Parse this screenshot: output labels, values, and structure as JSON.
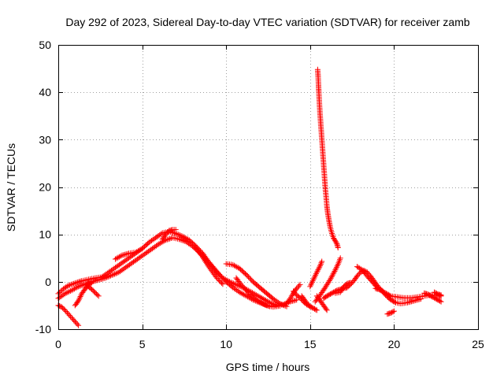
{
  "chart_data": {
    "type": "scatter",
    "title": "Day 292 of 2023, Sidereal Day-to-day VTEC variation (SDTVAR) for receiver zamb",
    "xlabel": "GPS time / hours",
    "ylabel": "SDTVAR / TECUs",
    "xlim": [
      0,
      25
    ],
    "ylim": [
      -10,
      50
    ],
    "xticks": [
      0,
      5,
      10,
      15,
      20,
      25
    ],
    "yticks": [
      -10,
      0,
      10,
      20,
      30,
      40,
      50
    ],
    "grid": true,
    "marker": "+",
    "series": [
      {
        "name": "SDTVAR",
        "color": "#ff0000",
        "tracks": [
          [
            [
              0.0,
              -2.5
            ],
            [
              0.3,
              -1.5
            ],
            [
              0.6,
              -0.8
            ],
            [
              1.0,
              -0.3
            ],
            [
              1.4,
              0.2
            ],
            [
              1.8,
              0.5
            ],
            [
              2.2,
              0.8
            ],
            [
              2.6,
              1.0
            ],
            [
              3.0,
              2.0
            ],
            [
              3.4,
              3.0
            ],
            [
              3.8,
              4.0
            ],
            [
              4.2,
              5.0
            ],
            [
              4.6,
              6.0
            ],
            [
              5.0,
              7.0
            ],
            [
              5.4,
              8.3
            ],
            [
              5.8,
              9.3
            ],
            [
              6.2,
              10.3
            ],
            [
              6.6,
              10.6
            ],
            [
              7.0,
              10.2
            ],
            [
              7.4,
              9.6
            ],
            [
              7.8,
              8.8
            ],
            [
              8.2,
              7.5
            ],
            [
              8.6,
              6.0
            ],
            [
              9.0,
              4.0
            ],
            [
              9.4,
              2.2
            ],
            [
              9.8,
              0.8
            ],
            [
              10.2,
              0.0
            ],
            [
              10.6,
              -0.6
            ],
            [
              11.0,
              -1.2
            ],
            [
              11.4,
              -2.0
            ],
            [
              11.8,
              -2.8
            ],
            [
              12.2,
              -3.6
            ],
            [
              12.6,
              -4.4
            ],
            [
              13.0,
              -5.0
            ],
            [
              13.4,
              -4.8
            ],
            [
              13.8,
              -4.2
            ],
            [
              14.2,
              -3.8
            ]
          ],
          [
            [
              0.0,
              -3.5
            ],
            [
              0.4,
              -2.5
            ],
            [
              0.8,
              -1.8
            ],
            [
              1.2,
              -1.0
            ],
            [
              1.6,
              -0.5
            ],
            [
              2.0,
              0.0
            ],
            [
              2.4,
              0.4
            ],
            [
              2.8,
              0.8
            ],
            [
              3.2,
              1.4
            ],
            [
              3.6,
              2.0
            ],
            [
              4.0,
              3.0
            ],
            [
              4.4,
              4.0
            ],
            [
              4.8,
              5.0
            ],
            [
              5.2,
              6.0
            ],
            [
              5.6,
              7.0
            ],
            [
              6.0,
              8.0
            ],
            [
              6.4,
              8.8
            ],
            [
              6.8,
              9.3
            ],
            [
              7.2,
              9.0
            ],
            [
              7.6,
              8.5
            ],
            [
              8.0,
              7.5
            ],
            [
              8.4,
              6.2
            ],
            [
              8.8,
              4.8
            ],
            [
              9.2,
              3.2
            ],
            [
              9.6,
              1.5
            ],
            [
              10.0,
              0.0
            ],
            [
              10.4,
              -1.2
            ],
            [
              10.8,
              -2.2
            ],
            [
              11.2,
              -3.0
            ],
            [
              11.6,
              -3.8
            ],
            [
              12.0,
              -4.4
            ],
            [
              12.4,
              -5.0
            ],
            [
              12.8,
              -5.3
            ],
            [
              13.2,
              -5.1
            ]
          ],
          [
            [
              0.0,
              -5.0
            ],
            [
              0.2,
              -5.3
            ],
            [
              0.4,
              -6.0
            ],
            [
              0.6,
              -6.8
            ],
            [
              0.8,
              -7.6
            ],
            [
              1.0,
              -8.4
            ],
            [
              1.2,
              -9.2
            ]
          ],
          [
            [
              1.0,
              -5.0
            ],
            [
              1.2,
              -4.0
            ],
            [
              1.4,
              -2.5
            ],
            [
              1.6,
              -1.5
            ],
            [
              1.8,
              -0.6
            ],
            [
              2.0,
              -0.2
            ]
          ],
          [
            [
              1.6,
              -0.5
            ],
            [
              1.8,
              -1.0
            ],
            [
              2.0,
              -1.6
            ],
            [
              2.2,
              -2.3
            ],
            [
              2.4,
              -3.0
            ]
          ],
          [
            [
              3.4,
              4.8
            ],
            [
              3.8,
              5.6
            ],
            [
              4.2,
              6.0
            ],
            [
              4.6,
              6.2
            ],
            [
              5.0,
              7.0
            ]
          ],
          [
            [
              6.2,
              9.0
            ],
            [
              6.4,
              10.0
            ],
            [
              6.6,
              10.8
            ],
            [
              6.8,
              11.0
            ],
            [
              7.0,
              11.0
            ]
          ],
          [
            [
              8.2,
              7.2
            ],
            [
              8.6,
              5.2
            ],
            [
              9.0,
              3.0
            ],
            [
              9.4,
              1.0
            ],
            [
              9.6,
              0.2
            ],
            [
              9.8,
              -0.5
            ]
          ],
          [
            [
              10.0,
              3.8
            ],
            [
              10.4,
              3.6
            ],
            [
              10.8,
              2.8
            ],
            [
              11.2,
              1.5
            ],
            [
              11.6,
              0.0
            ],
            [
              12.0,
              -1.2
            ],
            [
              12.4,
              -2.4
            ],
            [
              12.8,
              -3.6
            ],
            [
              13.2,
              -4.6
            ],
            [
              13.6,
              -5.2
            ]
          ],
          [
            [
              10.6,
              0.8
            ],
            [
              10.8,
              -0.2
            ],
            [
              11.0,
              -1.0
            ],
            [
              11.2,
              -1.8
            ],
            [
              11.4,
              -2.6
            ],
            [
              11.6,
              -3.2
            ],
            [
              11.8,
              -3.8
            ],
            [
              12.2,
              -4.6
            ],
            [
              12.6,
              -5.2
            ]
          ],
          [
            [
              13.6,
              -4.6
            ],
            [
              13.8,
              -3.6
            ],
            [
              14.0,
              -2.4
            ],
            [
              14.2,
              -1.4
            ],
            [
              14.4,
              -0.6
            ]
          ],
          [
            [
              14.0,
              -2.0
            ],
            [
              14.2,
              -2.8
            ],
            [
              14.4,
              -3.4
            ],
            [
              14.6,
              -4.2
            ],
            [
              14.8,
              -4.8
            ],
            [
              15.0,
              -5.2
            ],
            [
              15.2,
              -5.6
            ],
            [
              15.4,
              -6.0
            ]
          ],
          [
            [
              14.5,
              -3.0
            ],
            [
              14.8,
              -4.5
            ],
            [
              15.0,
              -5.2
            ]
          ],
          [
            [
              15.0,
              -1.0
            ],
            [
              15.2,
              0.5
            ],
            [
              15.4,
              2.0
            ],
            [
              15.6,
              3.4
            ],
            [
              15.7,
              4.3
            ]
          ],
          [
            [
              15.4,
              -3.0
            ],
            [
              15.6,
              -4.0
            ],
            [
              15.8,
              -5.0
            ],
            [
              16.0,
              -6.0
            ]
          ],
          [
            [
              15.45,
              44.8
            ],
            [
              15.48,
              43.2
            ],
            [
              15.5,
              41.5
            ],
            [
              15.52,
              40.0
            ],
            [
              15.55,
              38.0
            ],
            [
              15.58,
              36.0
            ],
            [
              15.62,
              34.0
            ],
            [
              15.66,
              32.0
            ],
            [
              15.7,
              30.0
            ],
            [
              15.74,
              28.0
            ],
            [
              15.78,
              26.0
            ],
            [
              15.82,
              24.0
            ],
            [
              15.86,
              22.0
            ],
            [
              15.9,
              20.0
            ],
            [
              15.95,
              18.0
            ],
            [
              16.0,
              16.0
            ],
            [
              16.05,
              14.5
            ],
            [
              16.12,
              13.0
            ],
            [
              16.2,
              11.5
            ],
            [
              16.3,
              10.2
            ],
            [
              16.4,
              9.2
            ],
            [
              16.52,
              8.5
            ],
            [
              16.6,
              8.0
            ],
            [
              16.66,
              7.2
            ]
          ],
          [
            [
              15.8,
              -3.5
            ],
            [
              16.0,
              -3.0
            ],
            [
              16.2,
              -2.6
            ],
            [
              16.4,
              -2.2
            ],
            [
              16.6,
              -1.8
            ],
            [
              16.8,
              -1.6
            ],
            [
              17.0,
              -1.4
            ],
            [
              17.2,
              -1.2
            ],
            [
              17.4,
              -0.6
            ],
            [
              17.6,
              0.2
            ],
            [
              17.8,
              1.2
            ],
            [
              18.0,
              2.0
            ],
            [
              18.2,
              2.4
            ],
            [
              18.4,
              2.0
            ],
            [
              18.6,
              1.2
            ],
            [
              18.8,
              0.2
            ],
            [
              19.0,
              -0.8
            ],
            [
              19.2,
              -1.6
            ],
            [
              19.4,
              -2.2
            ],
            [
              19.6,
              -2.6
            ],
            [
              19.8,
              -3.0
            ],
            [
              20.2,
              -3.2
            ],
            [
              20.6,
              -3.4
            ],
            [
              21.0,
              -3.4
            ],
            [
              21.4,
              -3.2
            ],
            [
              21.8,
              -3.0
            ],
            [
              22.2,
              -2.8
            ],
            [
              22.6,
              -2.8
            ],
            [
              22.8,
              -3.0
            ]
          ],
          [
            [
              15.3,
              -4.2
            ],
            [
              15.6,
              -2.8
            ],
            [
              15.9,
              -1.2
            ],
            [
              16.2,
              0.5
            ],
            [
              16.5,
              2.5
            ],
            [
              16.7,
              4.0
            ],
            [
              16.8,
              5.0
            ]
          ],
          [
            [
              16.5,
              -2.4
            ],
            [
              16.8,
              -2.2
            ],
            [
              17.0,
              -1.0
            ],
            [
              17.2,
              -0.4
            ],
            [
              17.4,
              -0.2
            ]
          ],
          [
            [
              17.8,
              3.2
            ],
            [
              18.1,
              2.5
            ],
            [
              18.4,
              1.2
            ],
            [
              18.7,
              0.0
            ],
            [
              19.0,
              -1.2
            ]
          ],
          [
            [
              18.9,
              -1.4
            ],
            [
              19.1,
              -1.6
            ],
            [
              19.3,
              -2.0
            ],
            [
              19.5,
              -2.8
            ],
            [
              19.7,
              -3.5
            ],
            [
              19.9,
              -4.0
            ],
            [
              20.1,
              -4.4
            ],
            [
              20.4,
              -4.6
            ],
            [
              20.8,
              -4.4
            ],
            [
              21.2,
              -4.0
            ],
            [
              21.6,
              -3.6
            ]
          ],
          [
            [
              19.6,
              -6.8
            ],
            [
              19.8,
              -6.6
            ],
            [
              20.0,
              -6.2
            ]
          ],
          [
            [
              21.8,
              -2.4
            ],
            [
              22.0,
              -2.6
            ],
            [
              22.2,
              -3.0
            ],
            [
              22.4,
              -3.4
            ],
            [
              22.6,
              -3.8
            ],
            [
              22.8,
              -4.2
            ]
          ],
          [
            [
              22.4,
              -2.2
            ],
            [
              22.6,
              -2.6
            ],
            [
              22.8,
              -2.8
            ]
          ]
        ]
      }
    ]
  }
}
